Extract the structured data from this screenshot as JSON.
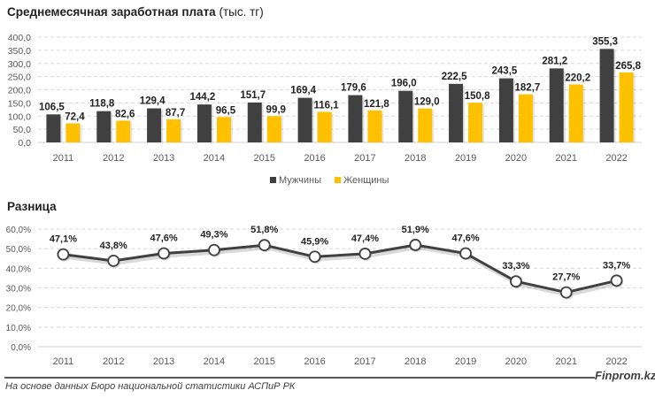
{
  "colors": {
    "men": "#404040",
    "women": "#FFC000",
    "line": "#404040",
    "grid": "#d9d9d9",
    "axis_text": "#595959"
  },
  "chart_data": [
    {
      "type": "bar",
      "title": "Среднемесячная заработная плата",
      "title_unit": "(тыс. тг)",
      "categories": [
        "2011",
        "2012",
        "2013",
        "2014",
        "2015",
        "2016",
        "2017",
        "2018",
        "2019",
        "2020",
        "2021",
        "2022"
      ],
      "series": [
        {
          "name": "Мужчины",
          "values": [
            106.5,
            118.8,
            129.4,
            144.2,
            151.7,
            169.4,
            179.6,
            196.0,
            222.5,
            243.5,
            281.2,
            355.3
          ],
          "labels": [
            "106,5",
            "118,8",
            "129,4",
            "144,2",
            "151,7",
            "169,4",
            "179,6",
            "196,0",
            "222,5",
            "243,5",
            "281,2",
            "355,3"
          ]
        },
        {
          "name": "Женщины",
          "values": [
            72.4,
            82.6,
            87.7,
            96.5,
            99.9,
            116.1,
            121.8,
            129.0,
            150.8,
            182.7,
            220.2,
            265.8
          ],
          "labels": [
            "72,4",
            "82,6",
            "87,7",
            "96,5",
            "99,9",
            "116,1",
            "121,8",
            "129,0",
            "150,8",
            "182,7",
            "220,2",
            "265,8"
          ]
        }
      ],
      "ylim": [
        0,
        400
      ],
      "yticks": [
        "0,0",
        "50,0",
        "100,0",
        "150,0",
        "200,0",
        "250,0",
        "300,0",
        "350,0",
        "400,0"
      ],
      "grid": true,
      "legend": "bottom-center"
    },
    {
      "type": "line",
      "title": "Разница",
      "categories": [
        "2011",
        "2012",
        "2013",
        "2014",
        "2015",
        "2016",
        "2017",
        "2018",
        "2019",
        "2020",
        "2021",
        "2022"
      ],
      "series": [
        {
          "name": "Разница",
          "values": [
            47.1,
            43.8,
            47.6,
            49.3,
            51.8,
            45.9,
            47.4,
            51.9,
            47.6,
            33.3,
            27.7,
            33.7
          ],
          "labels": [
            "47,1%",
            "43,8%",
            "47,6%",
            "49,3%",
            "51,8%",
            "45,9%",
            "47,4%",
            "51,9%",
            "47,6%",
            "33,3%",
            "27,7%",
            "33,7%"
          ]
        }
      ],
      "ylim": [
        0,
        60
      ],
      "yticks": [
        "0,0%",
        "10,0%",
        "20,0%",
        "30,0%",
        "40,0%",
        "50,0%",
        "60,0%"
      ],
      "grid": true
    }
  ],
  "footer": {
    "source": "На основе данных Бюро национальной статистики АСПиР РК",
    "brand": "Finprom.kz"
  }
}
